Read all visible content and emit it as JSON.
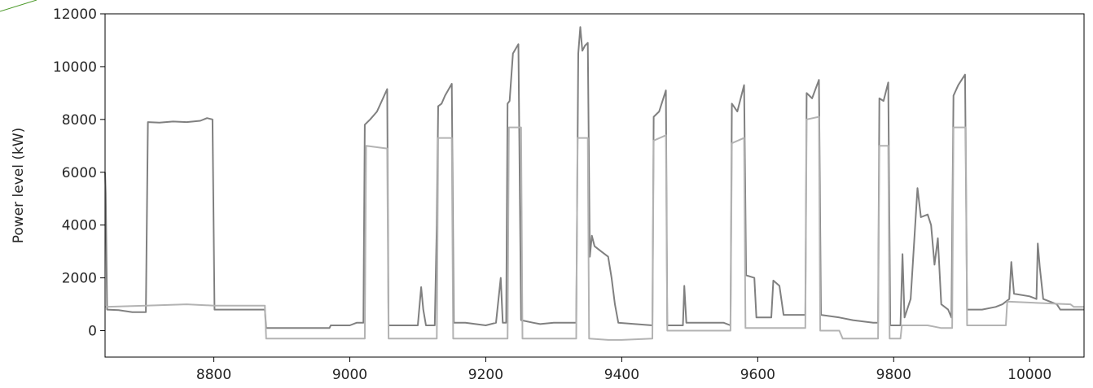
{
  "chart_data": {
    "type": "line",
    "title": "",
    "xlabel": "",
    "ylabel": "Power level (kW)",
    "xlim": [
      8640,
      10080
    ],
    "ylim": [
      -1000,
      12000
    ],
    "x_ticks": [
      8800,
      9000,
      9200,
      9400,
      9600,
      9800,
      10000
    ],
    "y_ticks": [
      0,
      2000,
      4000,
      6000,
      8000,
      10000,
      12000
    ],
    "grid": false,
    "legend": "none",
    "series": [
      {
        "color": "#808080",
        "points": [
          [
            8640,
            6000
          ],
          [
            8641,
            5200
          ],
          [
            8643,
            800
          ],
          [
            8660,
            780
          ],
          [
            8680,
            700
          ],
          [
            8700,
            700
          ],
          [
            8703,
            7900
          ],
          [
            8720,
            7880
          ],
          [
            8740,
            7920
          ],
          [
            8760,
            7900
          ],
          [
            8780,
            7950
          ],
          [
            8790,
            8050
          ],
          [
            8798,
            8000
          ],
          [
            8801,
            800
          ],
          [
            8850,
            800
          ],
          [
            8875,
            800
          ],
          [
            8877,
            100
          ],
          [
            8970,
            100
          ],
          [
            8972,
            200
          ],
          [
            9000,
            200
          ],
          [
            9010,
            300
          ],
          [
            9020,
            300
          ],
          [
            9022,
            7800
          ],
          [
            9030,
            8000
          ],
          [
            9040,
            8300
          ],
          [
            9055,
            9150
          ],
          [
            9057,
            200
          ],
          [
            9100,
            200
          ],
          [
            9105,
            1650
          ],
          [
            9108,
            800
          ],
          [
            9112,
            200
          ],
          [
            9125,
            200
          ],
          [
            9128,
            4000
          ],
          [
            9130,
            8500
          ],
          [
            9135,
            8600
          ],
          [
            9140,
            8900
          ],
          [
            9150,
            9350
          ],
          [
            9153,
            300
          ],
          [
            9170,
            300
          ],
          [
            9200,
            200
          ],
          [
            9215,
            300
          ],
          [
            9222,
            2000
          ],
          [
            9225,
            300
          ],
          [
            9230,
            300
          ],
          [
            9232,
            8600
          ],
          [
            9235,
            8700
          ],
          [
            9240,
            10500
          ],
          [
            9248,
            10850
          ],
          [
            9252,
            400
          ],
          [
            9270,
            300
          ],
          [
            9280,
            250
          ],
          [
            9300,
            300
          ],
          [
            9320,
            300
          ],
          [
            9333,
            300
          ],
          [
            9336,
            10500
          ],
          [
            9339,
            11500
          ],
          [
            9342,
            10600
          ],
          [
            9346,
            10800
          ],
          [
            9350,
            10900
          ],
          [
            9353,
            2800
          ],
          [
            9356,
            3600
          ],
          [
            9360,
            3200
          ],
          [
            9370,
            3000
          ],
          [
            9380,
            2800
          ],
          [
            9385,
            2000
          ],
          [
            9390,
            1000
          ],
          [
            9395,
            300
          ],
          [
            9445,
            200
          ],
          [
            9447,
            8100
          ],
          [
            9455,
            8300
          ],
          [
            9465,
            9100
          ],
          [
            9467,
            200
          ],
          [
            9490,
            200
          ],
          [
            9492,
            1700
          ],
          [
            9495,
            300
          ],
          [
            9550,
            300
          ],
          [
            9560,
            200
          ],
          [
            9562,
            8600
          ],
          [
            9570,
            8300
          ],
          [
            9580,
            9300
          ],
          [
            9583,
            2100
          ],
          [
            9595,
            2000
          ],
          [
            9598,
            500
          ],
          [
            9620,
            500
          ],
          [
            9623,
            1900
          ],
          [
            9632,
            1700
          ],
          [
            9638,
            600
          ],
          [
            9670,
            600
          ],
          [
            9672,
            9000
          ],
          [
            9680,
            8800
          ],
          [
            9690,
            9500
          ],
          [
            9693,
            600
          ],
          [
            9720,
            500
          ],
          [
            9740,
            400
          ],
          [
            9770,
            300
          ],
          [
            9777,
            300
          ],
          [
            9779,
            8800
          ],
          [
            9785,
            8700
          ],
          [
            9792,
            9400
          ],
          [
            9795,
            200
          ],
          [
            9810,
            200
          ],
          [
            9813,
            2900
          ],
          [
            9816,
            500
          ],
          [
            9825,
            1200
          ],
          [
            9835,
            5400
          ],
          [
            9840,
            4300
          ],
          [
            9850,
            4400
          ],
          [
            9855,
            4000
          ],
          [
            9860,
            2500
          ],
          [
            9865,
            3500
          ],
          [
            9870,
            1000
          ],
          [
            9880,
            800
          ],
          [
            9885,
            500
          ],
          [
            9888,
            8900
          ],
          [
            9895,
            9300
          ],
          [
            9905,
            9700
          ],
          [
            9908,
            800
          ],
          [
            9930,
            800
          ],
          [
            9950,
            900
          ],
          [
            9960,
            1000
          ],
          [
            9970,
            1200
          ],
          [
            9973,
            2600
          ],
          [
            9977,
            1400
          ],
          [
            10000,
            1300
          ],
          [
            10010,
            1200
          ],
          [
            10012,
            3300
          ],
          [
            10015,
            2400
          ],
          [
            10020,
            1200
          ],
          [
            10040,
            1000
          ],
          [
            10045,
            800
          ],
          [
            10080,
            800
          ]
        ]
      },
      {
        "color": "#b3b3b3",
        "points": [
          [
            8640,
            900
          ],
          [
            8700,
            950
          ],
          [
            8760,
            1000
          ],
          [
            8800,
            950
          ],
          [
            8875,
            950
          ],
          [
            8877,
            -300
          ],
          [
            9022,
            -300
          ],
          [
            9024,
            7000
          ],
          [
            9055,
            6900
          ],
          [
            9057,
            -300
          ],
          [
            9128,
            -300
          ],
          [
            9130,
            7300
          ],
          [
            9150,
            7300
          ],
          [
            9152,
            -300
          ],
          [
            9232,
            -300
          ],
          [
            9234,
            7700
          ],
          [
            9252,
            7700
          ],
          [
            9254,
            -300
          ],
          [
            9333,
            -300
          ],
          [
            9335,
            7300
          ],
          [
            9350,
            7300
          ],
          [
            9352,
            -300
          ],
          [
            9380,
            -350
          ],
          [
            9400,
            -350
          ],
          [
            9445,
            -300
          ],
          [
            9447,
            7200
          ],
          [
            9465,
            7400
          ],
          [
            9467,
            0
          ],
          [
            9560,
            0
          ],
          [
            9562,
            7100
          ],
          [
            9580,
            7300
          ],
          [
            9582,
            100
          ],
          [
            9670,
            100
          ],
          [
            9672,
            8000
          ],
          [
            9690,
            8100
          ],
          [
            9692,
            0
          ],
          [
            9720,
            0
          ],
          [
            9725,
            -300
          ],
          [
            9777,
            -300
          ],
          [
            9779,
            7000
          ],
          [
            9792,
            7000
          ],
          [
            9794,
            -300
          ],
          [
            9810,
            -300
          ],
          [
            9812,
            200
          ],
          [
            9850,
            200
          ],
          [
            9870,
            100
          ],
          [
            9886,
            100
          ],
          [
            9888,
            7700
          ],
          [
            9906,
            7700
          ],
          [
            9908,
            200
          ],
          [
            9965,
            200
          ],
          [
            9967,
            1100
          ],
          [
            10060,
            1000
          ],
          [
            10065,
            900
          ],
          [
            10080,
            900
          ]
        ]
      }
    ]
  }
}
